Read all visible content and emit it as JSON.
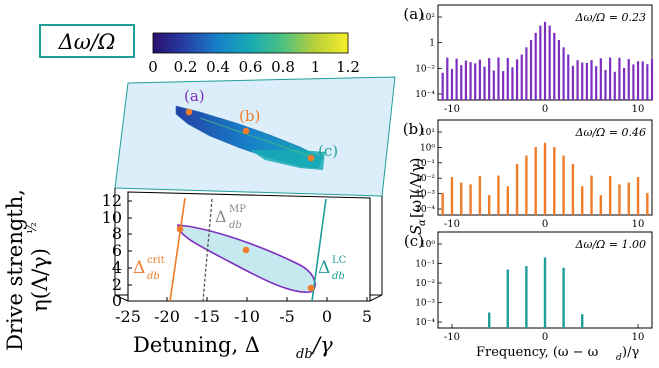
{
  "colorbar": {
    "label": "Δω/Ω",
    "ticks": [
      "0",
      "0.2",
      "0.4",
      "0.6",
      "0.8",
      "1",
      "1.2"
    ],
    "values": [
      0,
      0.2,
      0.4,
      0.6,
      0.8,
      1,
      1.2
    ],
    "colors": [
      "#2a0f6e",
      "#2541a6",
      "#1780c8",
      "#17aab4",
      "#4fc17f",
      "#b9cf3b",
      "#f7ee2a"
    ]
  },
  "main": {
    "upper_points": [
      "(a)",
      "(b)",
      "(c)"
    ],
    "lower_labels": {
      "crit": "Δ",
      "crit_sub": "db",
      "crit_sup": "crit",
      "mp": "Δ",
      "mp_sub": "db",
      "mp_sup": "MP",
      "lc": "Δ",
      "lc_sub": "db",
      "lc_sup": "LC"
    },
    "x_ticks": [
      "-25",
      "-20",
      "-15",
      "-10",
      "-5",
      "0",
      "5"
    ],
    "y_ticks": [
      "0",
      "2",
      "4",
      "6",
      "8",
      "10",
      "12"
    ],
    "x_label_text": "Detuning, Δ",
    "x_label_sub": "db",
    "x_label_tail": "/γ",
    "y_label_line1": "Drive strength,",
    "y_label_line2": "η(Λ/γ)",
    "y_label_exp": "½"
  },
  "panels": {
    "y_axis_label": "S",
    "y_axis_sub": "α",
    "y_axis_tail": "[ω](Λ/γ)",
    "x_axis_label": "Frequency, (ω − ω",
    "x_axis_sub": "d",
    "x_axis_tail": ")/γ",
    "items": [
      {
        "tag": "(a)",
        "annotation": "Δω/Ω = 0.23",
        "color": "#7e2fbf",
        "y_ticks": [
          "10²",
          "1",
          "10⁻²",
          "10⁻⁴"
        ],
        "x_ticks": [
          "-10",
          "0",
          "10"
        ]
      },
      {
        "tag": "(b)",
        "annotation": "Δω/Ω = 0.46",
        "color": "#f07c2a",
        "y_ticks": [
          "10¹",
          "10⁰",
          "10⁻¹",
          "10⁻²",
          "10⁻³",
          "10⁻⁴"
        ],
        "x_ticks": [
          "-10",
          "0",
          "10"
        ]
      },
      {
        "tag": "(c)",
        "annotation": "Δω/Ω = 1.00",
        "color": "#1f9e99",
        "y_ticks": [
          "10⁰",
          "10⁻¹",
          "10⁻²",
          "10⁻³",
          "10⁻⁴"
        ],
        "x_ticks": [
          "-10",
          "0",
          "10"
        ]
      }
    ]
  }
}
